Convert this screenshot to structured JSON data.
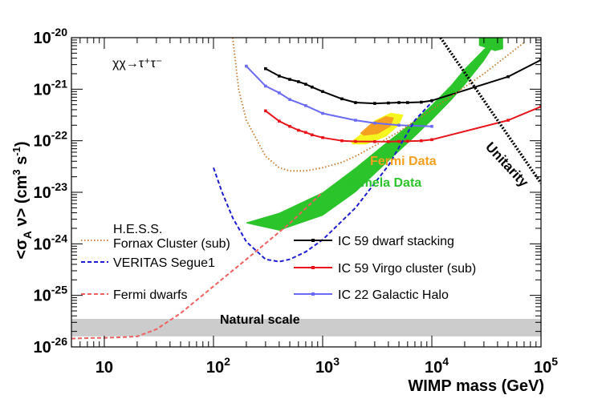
{
  "chart_data": {
    "type": "line",
    "title": "",
    "xlabel": "WIMP mass (GeV)",
    "ylabel": "<σ_A v> (cm³ s⁻¹)",
    "xscale": "log",
    "yscale": "log",
    "xlim": [
      5,
      100000
    ],
    "ylim": [
      1e-26,
      1e-20
    ],
    "grid": false,
    "process_label": "χχ→τ⁺τ⁻",
    "x_tick_labels": [
      {
        "value": 10,
        "base": "10",
        "exp": ""
      },
      {
        "value": 100,
        "base": "10",
        "exp": "2"
      },
      {
        "value": 1000,
        "base": "10",
        "exp": "3"
      },
      {
        "value": 10000,
        "base": "10",
        "exp": "4"
      },
      {
        "value": 100000,
        "base": "10",
        "exp": "5"
      }
    ],
    "y_tick_labels": [
      {
        "value": 1e-26,
        "base": "10",
        "exp": "-26"
      },
      {
        "value": 1e-25,
        "base": "10",
        "exp": "-25"
      },
      {
        "value": 1e-24,
        "base": "10",
        "exp": "-24"
      },
      {
        "value": 1e-23,
        "base": "10",
        "exp": "-23"
      },
      {
        "value": 1e-22,
        "base": "10",
        "exp": "-22"
      },
      {
        "value": 1e-21,
        "base": "10",
        "exp": "-21"
      },
      {
        "value": 1e-20,
        "base": "10",
        "exp": "-20"
      }
    ],
    "legend_left": [
      {
        "name": "H.E.S.S.",
        "line2": "Fornax Cluster (sub)",
        "series": "hess"
      },
      {
        "name": "VERITAS Segue1",
        "line2": "",
        "series": "veritas"
      },
      {
        "name": "Fermi dwarfs",
        "line2": "",
        "series": "fermi_dwarfs"
      }
    ],
    "legend_right": [
      {
        "name": "IC 59 dwarf stacking",
        "series": "ic59_dwarf"
      },
      {
        "name": "IC 59 Virgo cluster (sub)",
        "series": "ic59_virgo"
      },
      {
        "name": "IC 22 Galactic Halo",
        "series": "ic22_halo"
      }
    ],
    "annotations": {
      "natural_scale": "Natural scale",
      "unitarity": "Unitarity",
      "fermi_data": "Fermi Data",
      "pamela_data": "Pamela Data"
    },
    "colors": {
      "ic59_dwarf": "#000000",
      "ic59_virgo": "#e8141a",
      "ic22_halo": "#6a6af4",
      "hess": "#c8782a",
      "veritas": "#1c1cd2",
      "fermi_dwarfs": "#f06060",
      "pamela": "#2bc42b",
      "fermi_yellow": "#f5f520",
      "fermi_orange": "#f5a020",
      "natural_band": "#cccccc",
      "fermi_label": "#f5a020",
      "pamela_label": "#2bc42b"
    },
    "natural_scale_band": {
      "ymin": 1.6e-26,
      "ymax": 3.5e-26,
      "xmin": 5,
      "xmax": 100000
    },
    "series": [
      {
        "id": "ic59_dwarf",
        "style": "solid-markers",
        "x": [
          300,
          400,
          500,
          600,
          700,
          800,
          1000,
          1500,
          2000,
          3000,
          4000,
          5000,
          6000,
          8000,
          10000,
          50000,
          100000
        ],
        "y": [
          2.5e-21,
          1.8e-21,
          1.55e-21,
          1.4e-21,
          1.25e-21,
          1.1e-21,
          9e-22,
          6.5e-22,
          5.5e-22,
          5.3e-22,
          5.4e-22,
          5.5e-22,
          5.5e-22,
          5.6e-22,
          6e-22,
          1.75e-21,
          3.7e-21
        ]
      },
      {
        "id": "ic59_virgo",
        "style": "solid-markers",
        "x": [
          300,
          400,
          500,
          600,
          700,
          800,
          1000,
          1500,
          2000,
          3000,
          4000,
          5000,
          6000,
          8000,
          10000,
          50000,
          100000
        ],
        "y": [
          3.8e-22,
          2.4e-22,
          1.9e-22,
          1.6e-22,
          1.45e-22,
          1.3e-22,
          1.15e-22,
          1e-22,
          9.7e-23,
          9.6e-23,
          9.6e-23,
          9.7e-23,
          9.8e-23,
          1e-22,
          1.05e-22,
          2.5e-22,
          4.6e-22
        ]
      },
      {
        "id": "ic22_halo",
        "style": "solid-markers",
        "x": [
          200,
          300,
          400,
          500,
          700,
          1000,
          2000,
          3000,
          5000,
          10000
        ],
        "y": [
          2.8e-21,
          1.15e-21,
          8.5e-22,
          6.3e-22,
          4.8e-22,
          3.4e-22,
          2.5e-22,
          2.2e-22,
          2e-22,
          1.9e-22
        ]
      },
      {
        "id": "hess",
        "style": "dotted",
        "x": [
          150,
          170,
          200,
          300,
          400,
          500,
          700,
          1000,
          1500,
          2000,
          3000,
          5000,
          10000,
          30000,
          70000
        ],
        "y": [
          1e-20,
          1e-21,
          2.5e-22,
          5e-23,
          3e-23,
          2.6e-23,
          2.6e-23,
          3e-23,
          3.8e-23,
          5e-23,
          8e-23,
          1.5e-22,
          4e-22,
          2e-21,
          8e-21
        ]
      },
      {
        "id": "veritas",
        "style": "dashed",
        "x": [
          100,
          120,
          150,
          200,
          300,
          400,
          500,
          700,
          1000,
          2000,
          4000,
          7000,
          10000
        ],
        "y": [
          3e-23,
          1e-23,
          3.2e-24,
          1.1e-24,
          5e-25,
          4.5e-25,
          5e-25,
          7e-25,
          1.2e-24,
          5e-24,
          3.3e-23,
          2.5e-22,
          5.6e-22
        ]
      },
      {
        "id": "fermi_dwarfs",
        "style": "dashed",
        "x": [
          5,
          8,
          10,
          15,
          20,
          30,
          50,
          100,
          200,
          500,
          1000
        ],
        "y": [
          1.45e-26,
          1.5e-26,
          1.5e-26,
          1.55e-26,
          1.6e-26,
          2.2e-26,
          4.5e-26,
          1.5e-25,
          5e-25,
          2.5e-24,
          1e-23
        ]
      },
      {
        "id": "unitarity",
        "style": "dotted-thick",
        "x": [
          12000,
          100000
        ],
        "y": [
          1e-20,
          1.5e-23
        ]
      }
    ],
    "regions": {
      "pamela_upper": {
        "x": [
          200,
          400,
          1000,
          2000,
          4000,
          7000,
          10000,
          15000,
          20000,
          30000,
          40000
        ],
        "y": [
          2.6e-24,
          4e-24,
          1e-23,
          3e-23,
          1e-22,
          2.5e-22,
          5e-22,
          1.2e-21,
          2.5e-21,
          6e-21,
          1e-20
        ]
      },
      "pamela_lower": {
        "x": [
          200,
          400,
          1000,
          2000,
          4000,
          7000,
          10000,
          15000,
          20000,
          30000,
          40000
        ],
        "y": [
          2.5e-24,
          1.8e-24,
          3.5e-24,
          1e-23,
          4e-23,
          1.2e-22,
          2.5e-22,
          6e-22,
          1.2e-21,
          3.5e-21,
          9e-21
        ]
      },
      "pamela_island": {
        "x": [
          27000,
          35000,
          45000,
          45000,
          38000,
          27000
        ],
        "y": [
          1.3e-20,
          1.35e-20,
          1.2e-20,
          6e-21,
          5.5e-21,
          7e-21
        ]
      },
      "fermi_yellow": {
        "x": [
          1800,
          2200,
          3000,
          4200,
          5500,
          5000,
          3800,
          2500,
          1900
        ],
        "y": [
          9.5e-23,
          1.3e-22,
          2.5e-22,
          3.5e-22,
          3.2e-22,
          2e-22,
          1.2e-22,
          8.5e-23,
          8.5e-23
        ]
      },
      "fermi_orange": {
        "x": [
          2200,
          2800,
          3800,
          4500,
          4200,
          3200,
          2400
        ],
        "y": [
          1.4e-22,
          2.2e-22,
          3e-22,
          2.8e-22,
          1.9e-22,
          1.35e-22,
          1.25e-22
        ]
      }
    }
  }
}
